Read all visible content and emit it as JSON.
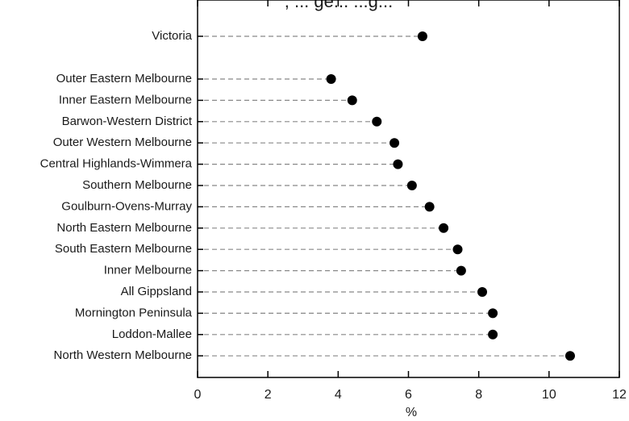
{
  "chart_data": {
    "type": "scatter",
    "title": ", ... ge... ...g...",
    "xlabel": "%",
    "ylabel": "",
    "xlim": [
      0,
      12
    ],
    "xticks": [
      0,
      2,
      4,
      6,
      8,
      10,
      12
    ],
    "grid": false,
    "legend": "none",
    "marker_color": "#000000",
    "leader_line_color": "#888888",
    "categories": [
      "Victoria",
      "Outer Eastern Melbourne",
      "Inner Eastern Melbourne",
      "Barwon-Western District",
      "Outer Western Melbourne",
      "Central Highlands-Wimmera",
      "Southern Melbourne",
      "Goulburn-Ovens-Murray",
      "North Eastern Melbourne",
      "South Eastern Melbourne",
      "Inner Melbourne",
      "All Gippsland",
      "Mornington Peninsula",
      "Loddon-Mallee",
      "North Western Melbourne"
    ],
    "values": [
      6.4,
      3.8,
      4.4,
      5.1,
      5.6,
      5.7,
      6.1,
      6.6,
      7.0,
      7.4,
      7.5,
      8.1,
      8.4,
      8.4,
      10.6
    ]
  }
}
